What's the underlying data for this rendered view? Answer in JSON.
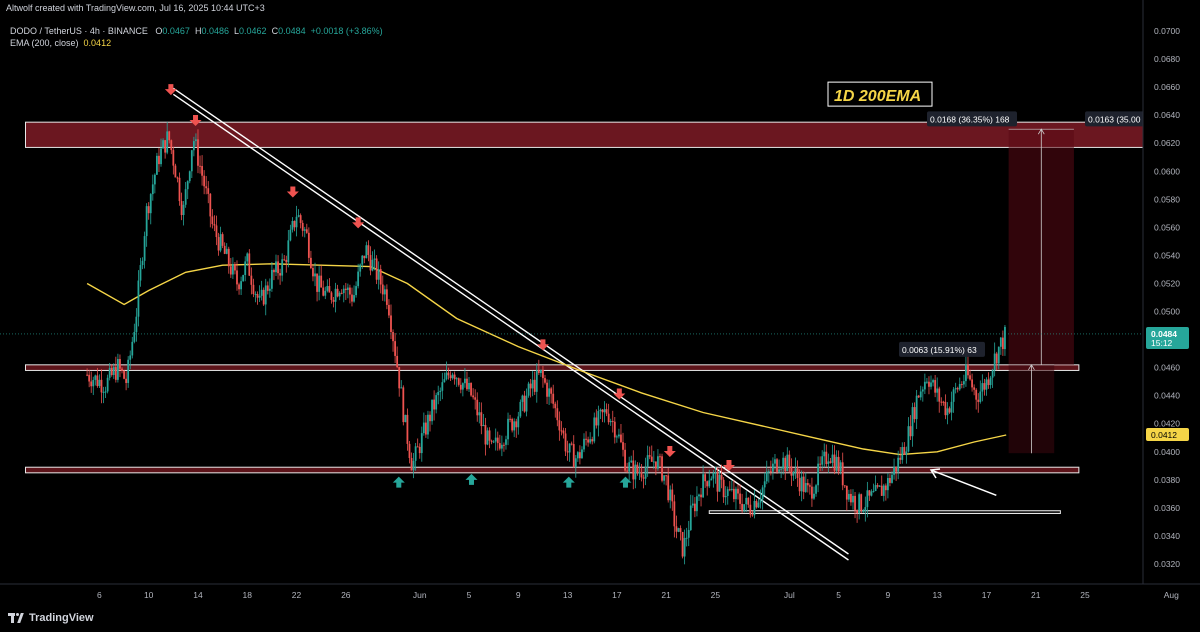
{
  "header": {
    "credit": "Altwolf created with TradingView.com, Jul 16, 2025 10:44 UTC+3"
  },
  "legend": {
    "symbol": "DODO / TetherUS · 4h · BINANCE",
    "o_label": "O",
    "o": "0.0467",
    "h_label": "H",
    "h": "0.0486",
    "l_label": "L",
    "l": "0.0462",
    "c_label": "C",
    "c": "0.0484",
    "change": "+0.0018 (+3.86%)",
    "ema_label": "EMA (200, close)",
    "ema_value": "0.0412"
  },
  "footer": {
    "brand": "TradingView"
  },
  "colors": {
    "up": "#26a69a",
    "down": "#ef5350",
    "ema": "#f5d547",
    "zone": "#7b1a22",
    "buy_arrow": "#26a69a",
    "sell_arrow": "#ef5350"
  },
  "chart_data": {
    "type": "candlestick",
    "ylim": [
      0.031,
      0.071
    ],
    "y_ticks": [
      "0.0700",
      "0.0680",
      "0.0660",
      "0.0640",
      "0.0620",
      "0.0600",
      "0.0580",
      "0.0560",
      "0.0540",
      "0.0520",
      "0.0500",
      "0.0480",
      "0.0460",
      "0.0440",
      "0.0420",
      "0.0400",
      "0.0380",
      "0.0360",
      "0.0340",
      "0.0320"
    ],
    "x_ticks": [
      "6",
      "10",
      "14",
      "18",
      "22",
      "26",
      "Jun",
      "5",
      "9",
      "13",
      "17",
      "21",
      "25",
      "Jul",
      "5",
      "9",
      "13",
      "17",
      "21",
      "25",
      "Aug"
    ],
    "x_tick_days": [
      6,
      10,
      14,
      18,
      22,
      26,
      32,
      36,
      40,
      44,
      48,
      52,
      56,
      62,
      66,
      70,
      74,
      78,
      82,
      86,
      93
    ],
    "x_axis_note": "days counted from May 1, 2025",
    "price_path": [
      [
        5.0,
        0.0455
      ],
      [
        6.5,
        0.0448
      ],
      [
        7.5,
        0.046
      ],
      [
        8.2,
        0.045
      ],
      [
        9.0,
        0.05
      ],
      [
        9.8,
        0.057
      ],
      [
        10.8,
        0.061
      ],
      [
        11.6,
        0.0625
      ],
      [
        12.2,
        0.06
      ],
      [
        12.8,
        0.057
      ],
      [
        13.6,
        0.0625
      ],
      [
        14.4,
        0.0595
      ],
      [
        15.2,
        0.056
      ],
      [
        16.2,
        0.054
      ],
      [
        17.2,
        0.052
      ],
      [
        18.0,
        0.0535
      ],
      [
        19.0,
        0.0505
      ],
      [
        20.0,
        0.0525
      ],
      [
        21.0,
        0.0535
      ],
      [
        22.0,
        0.057
      ],
      [
        22.8,
        0.0555
      ],
      [
        23.6,
        0.052
      ],
      [
        24.6,
        0.051
      ],
      [
        25.6,
        0.052
      ],
      [
        26.6,
        0.051
      ],
      [
        27.6,
        0.0545
      ],
      [
        28.6,
        0.0525
      ],
      [
        29.4,
        0.051
      ],
      [
        30.2,
        0.046
      ],
      [
        30.8,
        0.042
      ],
      [
        31.4,
        0.039
      ],
      [
        32.2,
        0.041
      ],
      [
        33.0,
        0.043
      ],
      [
        33.8,
        0.0445
      ],
      [
        34.6,
        0.046
      ],
      [
        35.4,
        0.045
      ],
      [
        36.2,
        0.044
      ],
      [
        37.0,
        0.042
      ],
      [
        37.8,
        0.04
      ],
      [
        38.6,
        0.041
      ],
      [
        39.4,
        0.042
      ],
      [
        40.2,
        0.043
      ],
      [
        41.0,
        0.0445
      ],
      [
        41.8,
        0.0455
      ],
      [
        42.6,
        0.044
      ],
      [
        43.4,
        0.042
      ],
      [
        44.0,
        0.04
      ],
      [
        44.8,
        0.0395
      ],
      [
        45.6,
        0.041
      ],
      [
        46.4,
        0.042
      ],
      [
        47.2,
        0.043
      ],
      [
        48.0,
        0.0415
      ],
      [
        48.8,
        0.039
      ],
      [
        49.6,
        0.0385
      ],
      [
        50.4,
        0.039
      ],
      [
        51.2,
        0.0395
      ],
      [
        52.0,
        0.038
      ],
      [
        52.8,
        0.0345
      ],
      [
        53.4,
        0.033
      ],
      [
        54.0,
        0.0355
      ],
      [
        54.8,
        0.0375
      ],
      [
        55.6,
        0.0385
      ],
      [
        56.4,
        0.0375
      ],
      [
        57.2,
        0.037
      ],
      [
        58.0,
        0.0365
      ],
      [
        58.8,
        0.036
      ],
      [
        59.6,
        0.037
      ],
      [
        60.4,
        0.0385
      ],
      [
        61.2,
        0.0395
      ],
      [
        62.0,
        0.039
      ],
      [
        62.8,
        0.038
      ],
      [
        63.6,
        0.037
      ],
      [
        64.4,
        0.0385
      ],
      [
        65.2,
        0.04
      ],
      [
        66.0,
        0.039
      ],
      [
        66.8,
        0.037
      ],
      [
        67.6,
        0.0362
      ],
      [
        68.4,
        0.0365
      ],
      [
        69.2,
        0.037
      ],
      [
        70.0,
        0.0378
      ],
      [
        70.8,
        0.0392
      ],
      [
        71.6,
        0.041
      ],
      [
        72.4,
        0.044
      ],
      [
        73.2,
        0.0455
      ],
      [
        74.0,
        0.044
      ],
      [
        74.8,
        0.043
      ],
      [
        75.6,
        0.0445
      ],
      [
        76.4,
        0.0455
      ],
      [
        77.2,
        0.044
      ],
      [
        78.0,
        0.045
      ],
      [
        78.8,
        0.047
      ],
      [
        79.6,
        0.0484
      ]
    ],
    "ema_path": [
      [
        5.0,
        0.052
      ],
      [
        8.0,
        0.0505
      ],
      [
        10.0,
        0.0515
      ],
      [
        13.0,
        0.0528
      ],
      [
        16.0,
        0.0533
      ],
      [
        20.0,
        0.0534
      ],
      [
        24.0,
        0.0533
      ],
      [
        28.0,
        0.0532
      ],
      [
        31.0,
        0.052
      ],
      [
        35.0,
        0.0495
      ],
      [
        40.0,
        0.0475
      ],
      [
        45.0,
        0.0458
      ],
      [
        50.0,
        0.0442
      ],
      [
        55.0,
        0.0428
      ],
      [
        60.0,
        0.0418
      ],
      [
        64.0,
        0.041
      ],
      [
        68.0,
        0.0402
      ],
      [
        71.0,
        0.0398
      ],
      [
        74.0,
        0.04
      ],
      [
        77.0,
        0.0407
      ],
      [
        79.6,
        0.0412
      ]
    ],
    "zones": [
      {
        "y1": 0.0617,
        "y2": 0.0635,
        "x1": 0,
        "x2": "axis"
      },
      {
        "y1": 0.0458,
        "y2": 0.0462,
        "x1": 0,
        "x2": 85.5
      },
      {
        "y1": 0.0385,
        "y2": 0.0389,
        "x1": 0,
        "x2": 85.5
      },
      {
        "y1": 0.0356,
        "y2": 0.0358,
        "x1": 55.5,
        "x2": 84
      }
    ],
    "trendline": {
      "from": [
        12,
        0.0657
      ],
      "to": [
        66.8,
        0.0325
      ]
    },
    "sell_arrows": [
      [
        11.8,
        0.0655
      ],
      [
        13.8,
        0.0633
      ],
      [
        21.7,
        0.0582
      ],
      [
        27.0,
        0.056
      ],
      [
        42.0,
        0.0473
      ],
      [
        48.2,
        0.0438
      ],
      [
        52.3,
        0.0397
      ],
      [
        57.1,
        0.0387
      ]
    ],
    "buy_arrows": [
      [
        30.3,
        0.0383
      ],
      [
        36.2,
        0.0385
      ],
      [
        44.1,
        0.0383
      ],
      [
        48.7,
        0.0383
      ]
    ],
    "measure_up": {
      "x1": 79.8,
      "x2": 85.1,
      "y1": 0.0462,
      "y2": 0.063,
      "label": "0.0168 (36.35%) 168"
    },
    "measure_down": {
      "x1": 79.8,
      "x2": 83.5,
      "y1": 0.0399,
      "y2": 0.0462,
      "label": "0.0063 (15.91%) 63"
    },
    "measure_right": {
      "x1": 91.5,
      "x2": 99.5,
      "y1": 0.0467,
      "y2": 0.063,
      "label": "0.0163 (35.00"
    },
    "annotation_label": "1D 200EMA",
    "annotation_arrow": {
      "from": [
        78.8,
        0.0369
      ],
      "to": [
        73.5,
        0.0387
      ]
    },
    "last_price": {
      "value": "0.0484",
      "timer": "15:12"
    },
    "ema_tag": "0.0412"
  }
}
